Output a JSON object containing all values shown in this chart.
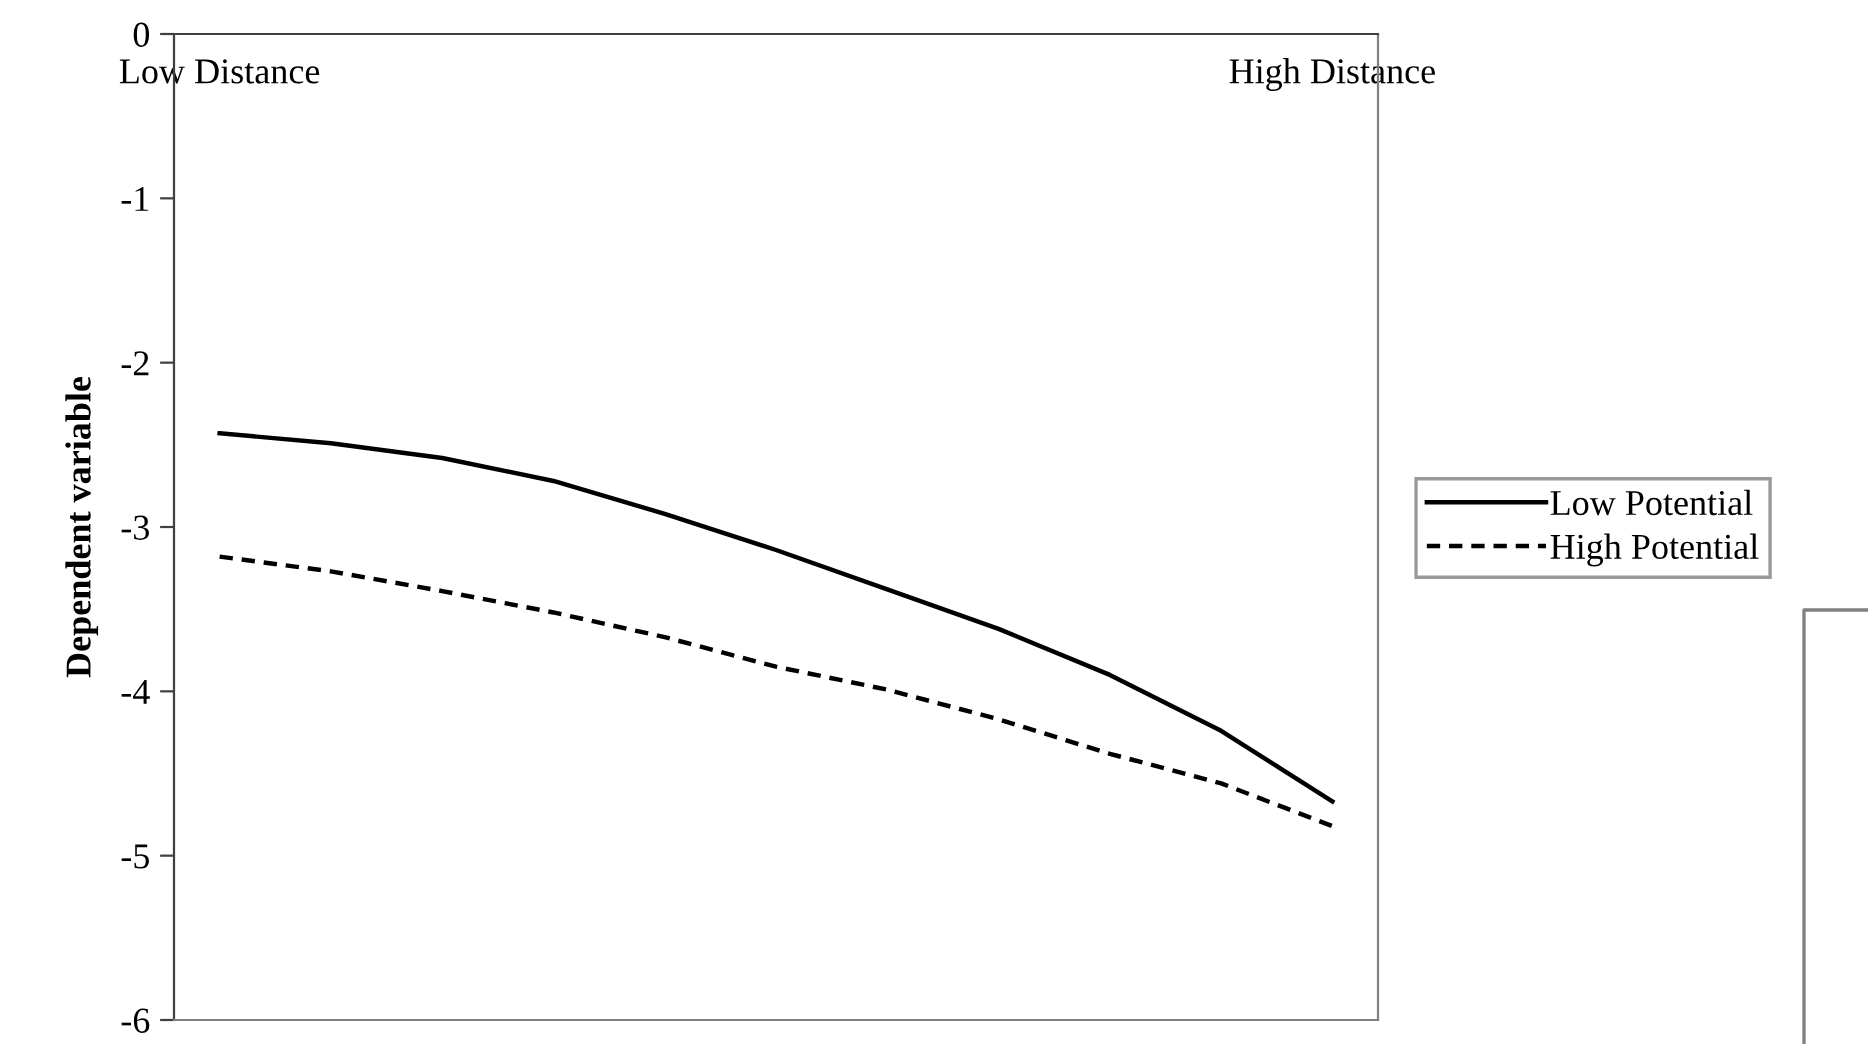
{
  "chart_data": {
    "type": "line",
    "ylabel": "Dependent variable",
    "categories": [
      "Low Distance",
      null,
      null,
      null,
      null,
      null,
      null,
      null,
      null,
      null,
      "High Distance"
    ],
    "series": [
      {
        "name": "Low Potential",
        "color": "#000000",
        "line_style": "solid",
        "values": [
          -2.43,
          -2.49,
          -2.58,
          -2.72,
          -2.92,
          -3.14,
          -3.38,
          -3.62,
          -3.9,
          -4.24,
          -4.67
        ]
      },
      {
        "name": "High Potential",
        "color": "#000000",
        "line_style": "dashed",
        "values": [
          -3.18,
          -3.27,
          -3.39,
          -3.52,
          -3.67,
          -3.85,
          -3.99,
          -4.17,
          -4.38,
          -4.56,
          -4.82
        ]
      }
    ],
    "ylim": [
      -6,
      0
    ],
    "yticks": [
      -6,
      -5,
      -4,
      -3,
      -2,
      -1,
      0
    ],
    "grid": false,
    "legend": "right",
    "marker": "none"
  }
}
